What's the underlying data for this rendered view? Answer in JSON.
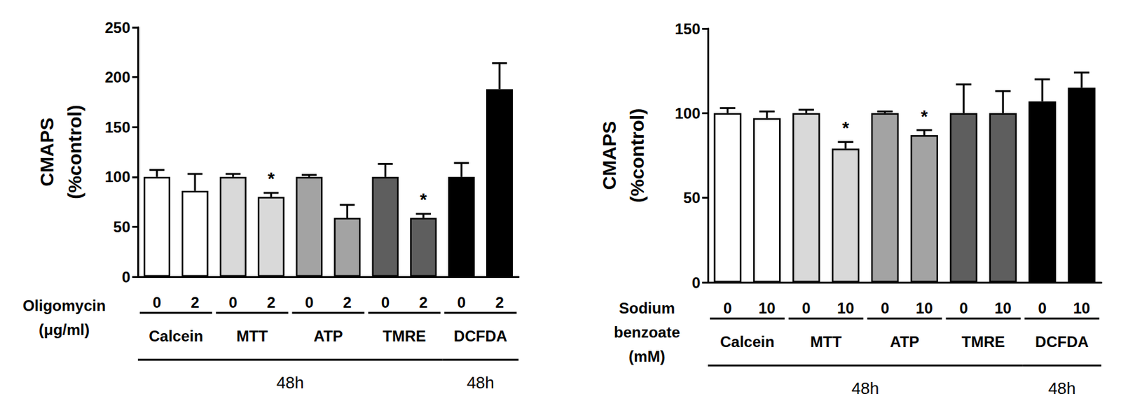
{
  "chart_data": [
    {
      "type": "bar",
      "ylabel": "CMAPS\n(%control)",
      "xlabel": "Oligomycin\n(μg/ml)",
      "categories": [
        "0",
        "2",
        "0",
        "2",
        "0",
        "2",
        "0",
        "2",
        "0",
        "2"
      ],
      "values": [
        100,
        86,
        100,
        80,
        100,
        59,
        100,
        59,
        100,
        188
      ],
      "errors": [
        7,
        17,
        3,
        4,
        2,
        13,
        13,
        4,
        14,
        26
      ],
      "colors": [
        "#ffffff",
        "#ffffff",
        "#d9d9d9",
        "#d9d9d9",
        "#a3a3a3",
        "#a3a3a3",
        "#5e5e5e",
        "#5e5e5e",
        "#000000",
        "#000000"
      ],
      "groups": [
        {
          "label": "Calcein",
          "span": [
            0,
            1
          ]
        },
        {
          "label": "MTT",
          "span": [
            2,
            3
          ]
        },
        {
          "label": "ATP",
          "span": [
            4,
            5
          ]
        },
        {
          "label": "TMRE",
          "span": [
            6,
            7
          ]
        },
        {
          "label": "DCFDA",
          "span": [
            8,
            9
          ]
        }
      ],
      "time_labels": [
        {
          "label": "48h",
          "span": [
            0,
            7
          ]
        },
        {
          "label": "48h",
          "span": [
            8,
            9
          ]
        }
      ],
      "annotations": [
        {
          "index": 3,
          "text": "*"
        },
        {
          "index": 7,
          "text": "*"
        }
      ],
      "ylim": [
        0,
        250
      ],
      "yticks": [
        0,
        50,
        100,
        150,
        200,
        250
      ],
      "grid": false
    },
    {
      "type": "bar",
      "ylabel": "CMAPS\n(%control)",
      "xlabel": "Sodium\nbenzoate\n(mM)",
      "categories": [
        "0",
        "10",
        "0",
        "10",
        "0",
        "10",
        "0",
        "10",
        "0",
        "10"
      ],
      "values": [
        100,
        97,
        100,
        79,
        100,
        87,
        100,
        100,
        107,
        115
      ],
      "errors": [
        3,
        4,
        2,
        4,
        1,
        3,
        17,
        13,
        13,
        9
      ],
      "colors": [
        "#ffffff",
        "#ffffff",
        "#d9d9d9",
        "#d9d9d9",
        "#a3a3a3",
        "#a3a3a3",
        "#5e5e5e",
        "#5e5e5e",
        "#000000",
        "#000000"
      ],
      "groups": [
        {
          "label": "Calcein",
          "span": [
            0,
            1
          ]
        },
        {
          "label": "MTT",
          "span": [
            2,
            3
          ]
        },
        {
          "label": "ATP",
          "span": [
            4,
            5
          ]
        },
        {
          "label": "TMRE",
          "span": [
            6,
            7
          ]
        },
        {
          "label": "DCFDA",
          "span": [
            8,
            9
          ]
        }
      ],
      "time_labels": [
        {
          "label": "48h",
          "span": [
            0,
            7
          ]
        },
        {
          "label": "48h",
          "span": [
            8,
            9
          ]
        }
      ],
      "annotations": [
        {
          "index": 3,
          "text": "*"
        },
        {
          "index": 5,
          "text": "*"
        }
      ],
      "ylim": [
        0,
        150
      ],
      "yticks": [
        0,
        50,
        100,
        150
      ],
      "grid": false
    }
  ]
}
